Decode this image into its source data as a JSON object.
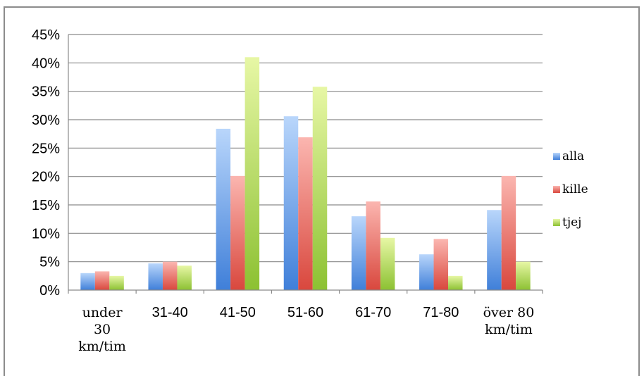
{
  "chart_data": {
    "type": "bar",
    "categories": [
      [
        "under",
        "30",
        "km/tim"
      ],
      [
        "31-40"
      ],
      [
        "41-50"
      ],
      [
        "51-60"
      ],
      [
        "61-70"
      ],
      [
        "71-80"
      ],
      [
        "över 80",
        "km/tim"
      ]
    ],
    "series": [
      {
        "name": "alla",
        "values": [
          3.0,
          4.7,
          28.4,
          30.6,
          13.0,
          6.3,
          14.1
        ],
        "color_light": "#b9d6fb",
        "color_dark": "#3f7fd9"
      },
      {
        "name": "kille",
        "values": [
          3.3,
          5.0,
          20.1,
          26.9,
          15.6,
          9.0,
          20.1
        ],
        "color_light": "#fbb6b0",
        "color_dark": "#d9473d"
      },
      {
        "name": "tjej",
        "values": [
          2.5,
          4.3,
          41.0,
          35.8,
          9.2,
          2.5,
          5.0
        ],
        "color_light": "#e7f7a5",
        "color_dark": "#8cc132"
      }
    ],
    "ylim": [
      0,
      45
    ],
    "yticks": [
      "0%",
      "5%",
      "10%",
      "15%",
      "20%",
      "25%",
      "30%",
      "35%",
      "40%",
      "45%"
    ],
    "grid": true,
    "legend_position": "right",
    "title": "",
    "xlabel": "",
    "ylabel": ""
  }
}
